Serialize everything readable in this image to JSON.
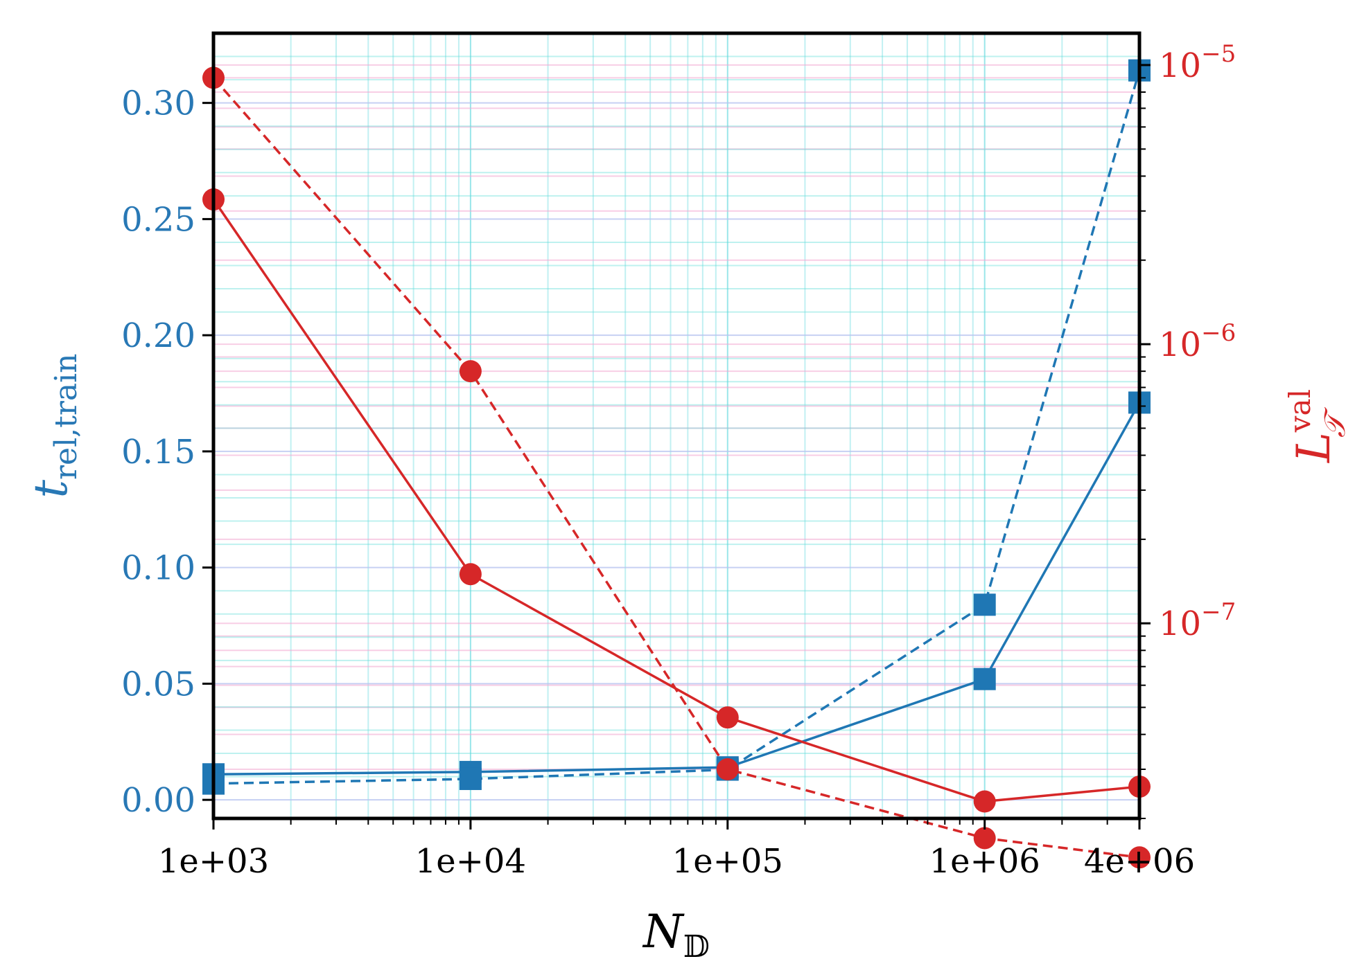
{
  "chart_data": {
    "type": "line",
    "x_scale": "log",
    "x": [
      1000,
      10000,
      100000,
      1000000,
      4000000
    ],
    "xlim": [
      1000,
      4000000
    ],
    "x_tick_values": [
      1000,
      10000,
      100000,
      1000000,
      4000000
    ],
    "x_tick_labels": [
      "1e+03",
      "1e+04",
      "1e+05",
      "1e+06",
      "4e+06"
    ],
    "xlabel": {
      "main": "N",
      "sub": "𝔻"
    },
    "y_left": {
      "label": {
        "main": "t",
        "sub": "rel,train"
      },
      "scale": "linear",
      "lim": [
        -0.008,
        0.33
      ],
      "ticks": [
        0.0,
        0.05,
        0.1,
        0.15,
        0.2,
        0.25,
        0.3
      ],
      "tick_labels": [
        "0.00",
        "0.05",
        "0.10",
        "0.15",
        "0.20",
        "0.25",
        "0.30"
      ],
      "color": "#2878b5"
    },
    "y_right": {
      "label": {
        "main": "L",
        "sub": "𝒯",
        "sup": "val"
      },
      "scale": "log",
      "lim": [
        2e-08,
        1.3e-05
      ],
      "ticks": [
        1e-07,
        1e-06,
        1e-05
      ],
      "tick_labels": [
        {
          "base": "10",
          "exp": "−7"
        },
        {
          "base": "10",
          "exp": "−6"
        },
        {
          "base": "10",
          "exp": "−5"
        }
      ],
      "color": "#d62728"
    },
    "grid": true,
    "legend": "none",
    "series": [
      {
        "axis": "left",
        "style": "solid",
        "marker": "square",
        "color": "#1f77b4",
        "values": [
          0.011,
          0.012,
          0.014,
          0.052,
          0.171
        ]
      },
      {
        "axis": "left",
        "style": "dashed",
        "marker": "square",
        "color": "#1f77b4",
        "values": [
          0.007,
          0.009,
          0.013,
          0.084,
          0.314
        ]
      },
      {
        "axis": "right",
        "style": "solid",
        "marker": "circle",
        "color": "#d62728",
        "values": [
          3.3e-06,
          1.5e-07,
          4.6e-08,
          2.3e-08,
          2.6e-08
        ]
      },
      {
        "axis": "right",
        "style": "dashed",
        "marker": "circle",
        "color": "#d62728",
        "values": [
          9e-06,
          8e-07,
          3e-08,
          1.7e-08,
          1.45e-08
        ]
      }
    ]
  }
}
